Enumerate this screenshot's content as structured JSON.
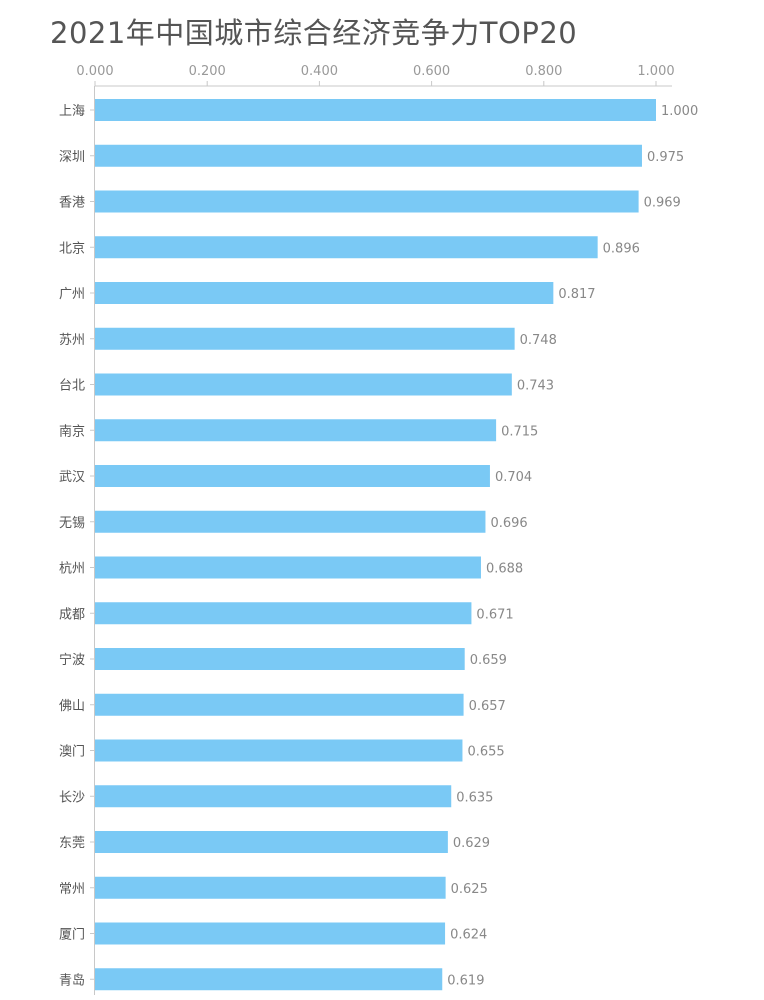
{
  "chart_data": {
    "type": "bar",
    "orientation": "horizontal",
    "title": "2021年中国城市综合经济竞争力TOP20",
    "x_axis_position": "top",
    "xlim": [
      0,
      1
    ],
    "xticks": [
      "0.000",
      "0.200",
      "0.400",
      "0.600",
      "0.800",
      "1.000"
    ],
    "grid": false,
    "bar_color": "#7ac9f5",
    "categories": [
      "上海",
      "深圳",
      "香港",
      "北京",
      "广州",
      "苏州",
      "台北",
      "南京",
      "武汉",
      "无锡",
      "杭州",
      "成都",
      "宁波",
      "佛山",
      "澳门",
      "长沙",
      "东莞",
      "常州",
      "厦门",
      "青岛"
    ],
    "values": [
      1.0,
      0.975,
      0.969,
      0.896,
      0.817,
      0.748,
      0.743,
      0.715,
      0.704,
      0.696,
      0.688,
      0.671,
      0.659,
      0.657,
      0.655,
      0.635,
      0.629,
      0.625,
      0.624,
      0.619
    ],
    "value_labels": [
      "1.000",
      "0.975",
      "0.969",
      "0.896",
      "0.817",
      "0.748",
      "0.743",
      "0.715",
      "0.704",
      "0.696",
      "0.688",
      "0.671",
      "0.659",
      "0.657",
      "0.655",
      "0.635",
      "0.629",
      "0.625",
      "0.624",
      "0.619"
    ]
  }
}
